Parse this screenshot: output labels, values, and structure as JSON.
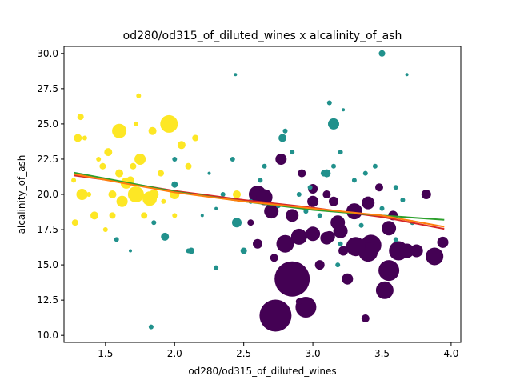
{
  "chart_data": {
    "type": "scatter",
    "title": "od280/od315_of_diluted_wines x alcalinity_of_ash",
    "xlabel": "od280/od315_of_diluted_wines",
    "ylabel": "alcalinity_of_ash",
    "xlim": [
      1.2,
      4.07
    ],
    "ylim": [
      9.5,
      30.5
    ],
    "xticks": [
      "1.5",
      "2.0",
      "2.5",
      "3.0",
      "3.5",
      "4.0"
    ],
    "yticks": [
      "10.0",
      "12.5",
      "15.0",
      "17.5",
      "20.0",
      "22.5",
      "25.0",
      "27.5",
      "30.0"
    ],
    "grid": false,
    "legend": "none",
    "colors": {
      "class_0": "#440154",
      "class_1": "#21918c",
      "class_2": "#fde725"
    },
    "marker_size_scale": "relative size, 1-22",
    "series": [
      {
        "color": "#440154",
        "points": [
          [
            2.85,
            14.0,
            22
          ],
          [
            2.73,
            11.4,
            20
          ],
          [
            2.95,
            12.0,
            13
          ],
          [
            3.55,
            14.6,
            13
          ],
          [
            3.52,
            13.2,
            11
          ],
          [
            3.62,
            16.0,
            12
          ],
          [
            3.88,
            15.6,
            11
          ],
          [
            3.42,
            16.4,
            13
          ],
          [
            3.4,
            15.9,
            12
          ],
          [
            3.31,
            16.3,
            12
          ],
          [
            2.8,
            16.5,
            11
          ],
          [
            2.9,
            17.0,
            10
          ],
          [
            3.0,
            17.2,
            9
          ],
          [
            3.1,
            16.9,
            8
          ],
          [
            3.2,
            17.4,
            9
          ],
          [
            3.18,
            18.0,
            9
          ],
          [
            3.55,
            17.6,
            9
          ],
          [
            3.3,
            18.8,
            10
          ],
          [
            2.6,
            20.0,
            11
          ],
          [
            2.65,
            19.8,
            10
          ],
          [
            2.7,
            18.8,
            9
          ],
          [
            2.85,
            18.5,
            8
          ],
          [
            3.0,
            19.5,
            7
          ],
          [
            3.4,
            19.4,
            8
          ],
          [
            3.12,
            17.0,
            7
          ],
          [
            3.25,
            14.0,
            7
          ],
          [
            3.68,
            16.0,
            9
          ],
          [
            3.75,
            16.0,
            8
          ],
          [
            3.94,
            16.6,
            7
          ],
          [
            2.77,
            22.5,
            7
          ],
          [
            3.0,
            20.4,
            6
          ],
          [
            2.92,
            21.5,
            5
          ],
          [
            3.1,
            20.0,
            5
          ],
          [
            3.82,
            20.0,
            6
          ],
          [
            3.48,
            20.5,
            5
          ],
          [
            3.22,
            16.0,
            6
          ],
          [
            2.6,
            16.5,
            6
          ],
          [
            3.05,
            15.0,
            6
          ],
          [
            2.72,
            15.5,
            5
          ],
          [
            3.38,
            11.2,
            5
          ],
          [
            2.9,
            12.4,
            4
          ],
          [
            2.7,
            19.0,
            7
          ],
          [
            3.15,
            19.5,
            6
          ],
          [
            3.58,
            18.5,
            6
          ],
          [
            2.55,
            18.0,
            4
          ]
        ]
      },
      {
        "color": "#21918c",
        "points": [
          [
            3.5,
            30.0,
            4
          ],
          [
            3.68,
            28.5,
            2
          ],
          [
            2.44,
            28.5,
            2
          ],
          [
            3.15,
            25.0,
            7
          ],
          [
            2.78,
            24.0,
            5
          ],
          [
            1.58,
            16.8,
            3
          ],
          [
            1.93,
            17.0,
            5
          ],
          [
            2.45,
            18.0,
            6
          ],
          [
            2.5,
            16.0,
            4
          ],
          [
            2.12,
            16.0,
            4
          ],
          [
            2.0,
            20.7,
            4
          ],
          [
            1.83,
            10.6,
            3
          ],
          [
            2.3,
            14.8,
            3
          ],
          [
            2.65,
            22.0,
            3
          ],
          [
            2.42,
            22.5,
            3
          ],
          [
            3.1,
            21.5,
            5
          ],
          [
            3.15,
            22.0,
            3
          ],
          [
            3.3,
            21.0,
            3
          ],
          [
            3.45,
            22.0,
            3
          ],
          [
            3.6,
            20.5,
            3
          ],
          [
            3.2,
            23.0,
            3
          ],
          [
            2.8,
            24.5,
            3
          ],
          [
            3.22,
            26.0,
            2
          ],
          [
            2.9,
            20.0,
            3
          ],
          [
            2.75,
            19.2,
            3
          ],
          [
            3.05,
            18.5,
            3
          ],
          [
            2.95,
            18.8,
            3
          ],
          [
            3.2,
            16.5,
            3
          ],
          [
            3.35,
            17.8,
            3
          ],
          [
            3.6,
            16.8,
            3
          ],
          [
            2.3,
            19.0,
            2
          ],
          [
            2.2,
            18.5,
            2
          ],
          [
            1.68,
            16.0,
            2
          ],
          [
            2.35,
            20.0,
            3
          ],
          [
            1.8,
            19.5,
            3
          ],
          [
            1.85,
            18.0,
            3
          ],
          [
            2.0,
            22.5,
            3
          ],
          [
            2.62,
            21.0,
            3
          ],
          [
            2.85,
            23.0,
            3
          ],
          [
            3.38,
            21.5,
            3
          ],
          [
            3.5,
            19.0,
            3
          ],
          [
            3.72,
            18.0,
            3
          ],
          [
            2.1,
            16.0,
            3
          ],
          [
            3.18,
            15.0,
            3
          ],
          [
            2.55,
            19.5,
            3
          ],
          [
            2.98,
            20.5,
            3
          ],
          [
            3.08,
            21.5,
            4
          ],
          [
            3.65,
            19.6,
            3
          ],
          [
            2.25,
            21.5,
            2
          ],
          [
            3.12,
            26.5,
            3
          ]
        ]
      },
      {
        "color": "#fde725",
        "points": [
          [
            1.96,
            25.0,
            11
          ],
          [
            1.6,
            24.5,
            9
          ],
          [
            1.72,
            20.0,
            10
          ],
          [
            1.33,
            20.0,
            7
          ],
          [
            1.82,
            19.7,
            9
          ],
          [
            1.75,
            22.5,
            7
          ],
          [
            1.65,
            20.8,
            7
          ],
          [
            1.3,
            24.0,
            5
          ],
          [
            1.52,
            23.0,
            5
          ],
          [
            1.48,
            22.0,
            4
          ],
          [
            1.62,
            19.5,
            7
          ],
          [
            1.68,
            21.0,
            5
          ],
          [
            1.55,
            20.0,
            5
          ],
          [
            1.78,
            18.5,
            4
          ],
          [
            1.85,
            20.0,
            6
          ],
          [
            2.05,
            23.5,
            5
          ],
          [
            1.42,
            18.5,
            5
          ],
          [
            1.28,
            18.0,
            4
          ],
          [
            1.32,
            25.5,
            4
          ],
          [
            1.72,
            25.0,
            3
          ],
          [
            1.74,
            27.0,
            3
          ],
          [
            1.84,
            24.5,
            5
          ],
          [
            2.0,
            20.0,
            6
          ],
          [
            2.1,
            22.0,
            4
          ],
          [
            1.5,
            17.5,
            3
          ],
          [
            1.6,
            21.5,
            5
          ],
          [
            1.9,
            21.5,
            4
          ],
          [
            2.15,
            24.0,
            4
          ],
          [
            1.55,
            18.5,
            4
          ],
          [
            2.45,
            20.0,
            5
          ],
          [
            1.45,
            22.5,
            3
          ],
          [
            1.27,
            21.0,
            3
          ],
          [
            1.7,
            22.0,
            4
          ],
          [
            1.38,
            20.0,
            3
          ],
          [
            1.92,
            19.5,
            3
          ],
          [
            2.0,
            18.5,
            3
          ],
          [
            1.35,
            24.0,
            3
          ]
        ]
      }
    ],
    "fit_lines": [
      {
        "color": "#d62728",
        "points": [
          [
            1.27,
            21.35
          ],
          [
            1.6,
            20.9
          ],
          [
            2.0,
            20.25
          ],
          [
            2.5,
            19.6
          ],
          [
            3.0,
            19.05
          ],
          [
            3.5,
            18.4
          ],
          [
            3.95,
            17.55
          ]
        ]
      },
      {
        "color": "#2ca02c",
        "points": [
          [
            1.27,
            21.55
          ],
          [
            1.6,
            20.95
          ],
          [
            2.0,
            20.2
          ],
          [
            2.5,
            19.5
          ],
          [
            3.0,
            18.9
          ],
          [
            3.5,
            18.5
          ],
          [
            3.95,
            18.2
          ]
        ]
      },
      {
        "color": "#ff7f0e",
        "points": [
          [
            1.27,
            21.45
          ],
          [
            1.6,
            20.85
          ],
          [
            2.0,
            20.15
          ],
          [
            2.5,
            19.5
          ],
          [
            3.0,
            19.0
          ],
          [
            3.5,
            18.5
          ],
          [
            3.95,
            17.7
          ]
        ]
      }
    ]
  }
}
